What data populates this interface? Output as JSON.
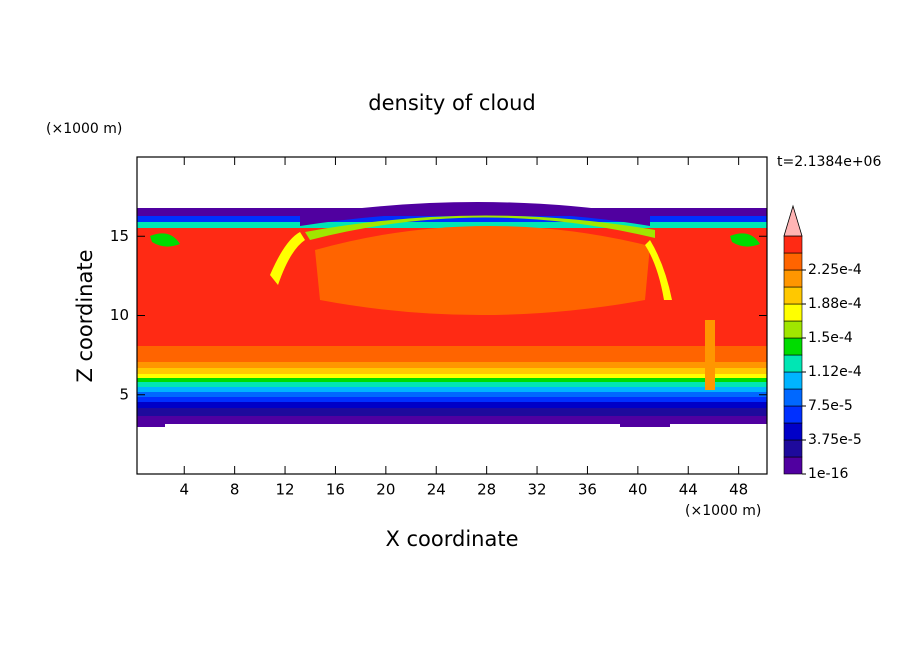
{
  "chart_data": {
    "type": "contour",
    "title": "density of cloud",
    "x_label": "X coordinate",
    "y_label": "Z coordinate",
    "x_unit": "(×1000 m)",
    "y_unit": "(×1000 m)",
    "annotation": "t=2.1384e+06",
    "xlim": [
      0.25,
      50.25
    ],
    "xticks": [
      4,
      8,
      12,
      16,
      20,
      24,
      28,
      32,
      36,
      40,
      44,
      48
    ],
    "ylim": [
      0,
      20
    ],
    "yticks": [
      5,
      10,
      15
    ],
    "colorbar": {
      "lim": [
        0,
        0.0002625
      ],
      "levels": [
        0,
        1.875e-05,
        3.75e-05,
        5.625e-05,
        7.5e-05,
        9.375e-05,
        0.0001125,
        0.00013125,
        0.00015,
        0.00016875,
        0.0001875,
        0.00020625,
        0.000225,
        0.00024375,
        0.0002625
      ],
      "colors": [
        "#5000a0",
        "#1e0a9c",
        "#0000c8",
        "#0030ff",
        "#0068ff",
        "#00b4ff",
        "#00e6b4",
        "#00dc00",
        "#a0e600",
        "#ffff00",
        "#ffc800",
        "#ff9600",
        "#ff6400",
        "#ff2a14"
      ],
      "extend_color": "#ffb4b4",
      "ticks": [
        {
          "value": 1e-16,
          "label": "1e-16"
        },
        {
          "value": 3.75e-05,
          "label": "3.75e-5"
        },
        {
          "value": 7.5e-05,
          "label": "7.5e-5"
        },
        {
          "value": 0.0001125,
          "label": "1.12e-4"
        },
        {
          "value": 0.00015,
          "label": "1.5e-4"
        },
        {
          "value": 0.0001875,
          "label": "1.88e-4"
        },
        {
          "value": 0.000225,
          "label": "2.25e-4"
        }
      ]
    }
  }
}
